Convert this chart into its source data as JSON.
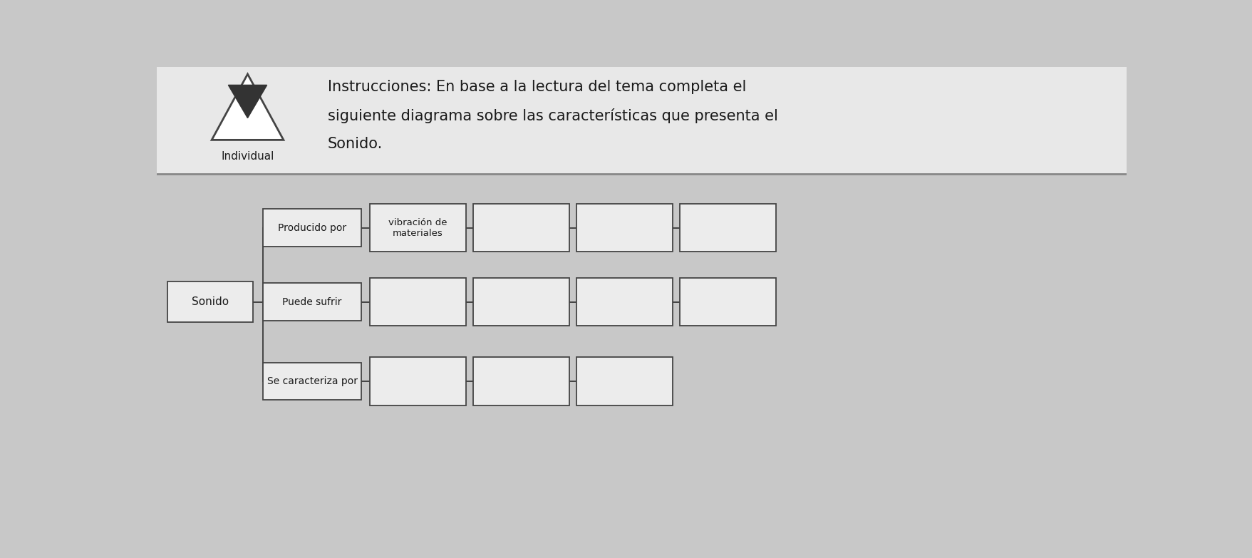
{
  "bg_color": "#c8c8c8",
  "diagram_bg": "#c8c8c8",
  "header_bg": "#e8e8e8",
  "box_fill": "#ececec",
  "box_edge": "#444444",
  "line_color": "#444444",
  "title_lines": [
    "Instrucciones: En base a la lectura del tema completa el",
    "siguiente diagrama sobre las características que presenta el",
    "Sonido."
  ],
  "label_individual": "Individual",
  "sonido_label": "Sonido",
  "branch_labels": [
    "Producido por",
    "Puede sufrir",
    "Se caracteriza por"
  ],
  "row1_first_label": "vibración de\nmateriales",
  "row1_child_count": 4,
  "row2_child_count": 4,
  "row3_child_count": 3,
  "font_size_title": 15,
  "font_size_box": 10,
  "font_size_branch": 10,
  "font_size_sonido": 11,
  "lw": 1.4
}
